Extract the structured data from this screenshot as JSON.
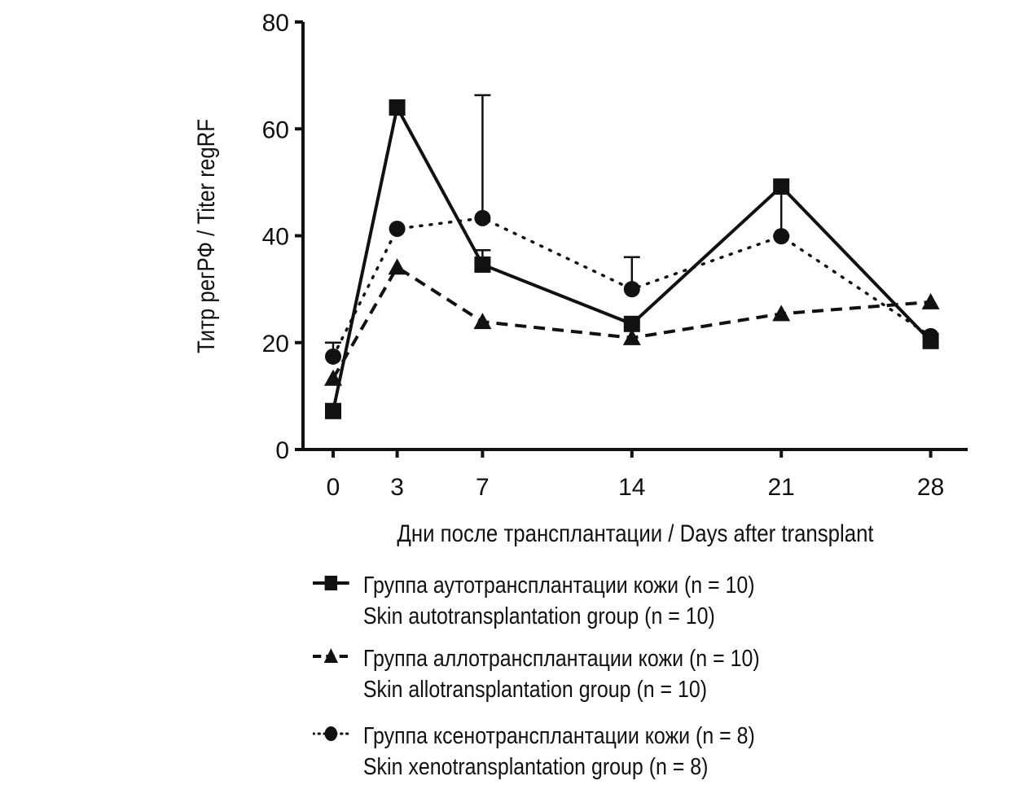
{
  "chart_data": {
    "type": "line",
    "ylabel": "Титр регРФ / Titer regRF",
    "xlabel": "Дни после трансплантации / Days after transplant",
    "ylim": [
      0,
      80
    ],
    "yticks": [
      0,
      20,
      40,
      60,
      80
    ],
    "x": [
      0,
      3,
      7,
      14,
      21,
      28
    ],
    "xlim": [
      -1,
      29.5
    ],
    "legend_position": "bottom",
    "series": [
      {
        "name": "Группа аутотрансплантации кожи (n = 10)",
        "name_en": "Skin autotransplantation group (n = 10)",
        "marker": "square",
        "style": "solid",
        "values": [
          7.2,
          64,
          34.6,
          23.5,
          49.2,
          20.3
        ],
        "error_upper": [
          null,
          null,
          37.3,
          null,
          null,
          null
        ],
        "error_lower": [
          null,
          null,
          null,
          null,
          40,
          null
        ]
      },
      {
        "name": "Группа аллотрансплантации кожи (n = 10)",
        "name_en": "Skin allotransplantation group (n = 10)",
        "marker": "triangle",
        "style": "dashed",
        "values": [
          13.3,
          34.1,
          23.9,
          20.9,
          25.4,
          27.6
        ],
        "error_upper": [
          null,
          null,
          null,
          null,
          null,
          null
        ],
        "error_lower": [
          null,
          null,
          null,
          null,
          null,
          null
        ]
      },
      {
        "name": "Группа ксенотрансплантации кожи (n = 8)",
        "name_en": "Skin xenotransplantation group (n = 8)",
        "marker": "circle",
        "style": "dotted",
        "values": [
          17.4,
          41.3,
          43.3,
          30,
          39.9,
          21.2
        ],
        "error_upper": [
          20,
          null,
          66.3,
          36,
          null,
          null
        ],
        "error_lower": [
          null,
          null,
          null,
          null,
          null,
          null
        ]
      }
    ]
  }
}
